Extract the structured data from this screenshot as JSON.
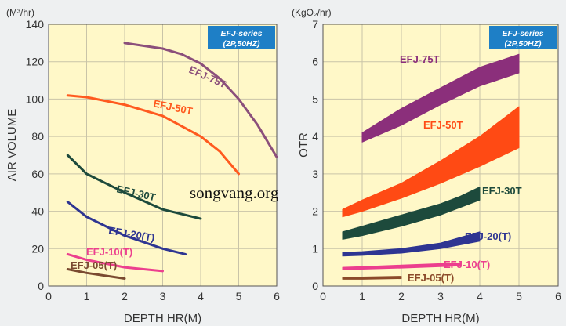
{
  "watermark": "songvang.org",
  "chart_data": [
    {
      "type": "line",
      "badge": [
        "EFJ-series",
        "(2P,50HZ)"
      ],
      "unit_label": "(M³/hr)",
      "ylabel": "AIR VOLUME",
      "xlabel": "DEPTH HR(M)",
      "xlim": [
        0,
        6
      ],
      "ylim": [
        0,
        140
      ],
      "xticks": [
        0,
        1,
        2,
        3,
        4,
        5,
        6
      ],
      "yticks": [
        0,
        20,
        40,
        60,
        80,
        100,
        120,
        140
      ],
      "grid": true,
      "series": [
        {
          "name": "EFJ-75T",
          "color": "#8b4f7b",
          "x": [
            2,
            3,
            3.5,
            4,
            4.5,
            5,
            5.5,
            6
          ],
          "y": [
            130,
            127,
            124,
            119,
            111,
            100,
            86,
            69
          ]
        },
        {
          "name": "EFJ-50T",
          "color": "#ff5a1f",
          "x": [
            0.5,
            1,
            2,
            3,
            4,
            4.5,
            5
          ],
          "y": [
            102,
            101,
            97,
            91,
            80,
            72,
            60
          ]
        },
        {
          "name": "EFJ-30T",
          "color": "#1d4a3c",
          "x": [
            0.5,
            1,
            2,
            3,
            4
          ],
          "y": [
            70,
            60,
            50,
            41,
            36
          ]
        },
        {
          "name": "EFJ-20(T)",
          "color": "#2e3592",
          "x": [
            0.5,
            1,
            2,
            3,
            3.6
          ],
          "y": [
            45,
            37,
            27,
            20,
            17
          ]
        },
        {
          "name": "EFJ-10(T)",
          "color": "#ec3f8e",
          "x": [
            0.5,
            1,
            2,
            3
          ],
          "y": [
            17,
            14,
            10,
            8
          ]
        },
        {
          "name": "EFJ-05(T)",
          "color": "#7a4a30",
          "x": [
            0.5,
            1,
            2
          ],
          "y": [
            9,
            7,
            4
          ]
        }
      ]
    },
    {
      "type": "area",
      "badge": [
        "EFJ-series",
        "(2P,50HZ)"
      ],
      "unit_label": "(KgO₂/hr)",
      "ylabel": "OTR",
      "xlabel": "DEPTH HR(M)",
      "xlim": [
        0,
        6
      ],
      "ylim": [
        0,
        7
      ],
      "xticks": [
        0,
        1,
        2,
        3,
        4,
        5,
        6
      ],
      "yticks": [
        0,
        1,
        2,
        3,
        4,
        5,
        6,
        7
      ],
      "grid": true,
      "series": [
        {
          "name": "EFJ-75T",
          "color": "#8b2f7b",
          "x": [
            1,
            2,
            3,
            4,
            5
          ],
          "lower": [
            3.85,
            4.3,
            4.85,
            5.35,
            5.7
          ],
          "upper": [
            4.1,
            4.75,
            5.3,
            5.85,
            6.2
          ]
        },
        {
          "name": "EFJ-50T",
          "color": "#ff4a14",
          "x": [
            0.5,
            1,
            2,
            3,
            4,
            5
          ],
          "lower": [
            1.85,
            2.0,
            2.35,
            2.75,
            3.2,
            3.7
          ],
          "upper": [
            2.05,
            2.3,
            2.75,
            3.35,
            4.0,
            4.8
          ]
        },
        {
          "name": "EFJ-30T",
          "color": "#1d4a3c",
          "x": [
            0.5,
            1,
            2,
            3,
            3.5,
            4
          ],
          "lower": [
            1.25,
            1.35,
            1.6,
            1.9,
            2.1,
            2.3
          ],
          "upper": [
            1.45,
            1.6,
            1.9,
            2.2,
            2.4,
            2.65
          ]
        },
        {
          "name": "EFJ-20(T)",
          "color": "#2e3592",
          "x": [
            0.5,
            1,
            2,
            3,
            3.5,
            4
          ],
          "lower": [
            0.8,
            0.82,
            0.88,
            1.0,
            1.1,
            1.2
          ],
          "upper": [
            0.9,
            0.92,
            1.0,
            1.15,
            1.3,
            1.45
          ]
        },
        {
          "name": "EFJ-10(T)",
          "color": "#ec3f8e",
          "x": [
            0.5,
            1,
            2,
            3,
            3.5
          ],
          "lower": [
            0.43,
            0.45,
            0.48,
            0.52,
            0.54
          ],
          "upper": [
            0.5,
            0.52,
            0.56,
            0.6,
            0.62
          ]
        },
        {
          "name": "EFJ-05(T)",
          "color": "#8b4a2a",
          "x": [
            0.5,
            1,
            2
          ],
          "lower": [
            0.18,
            0.18,
            0.2
          ],
          "upper": [
            0.24,
            0.24,
            0.26
          ]
        }
      ]
    }
  ]
}
